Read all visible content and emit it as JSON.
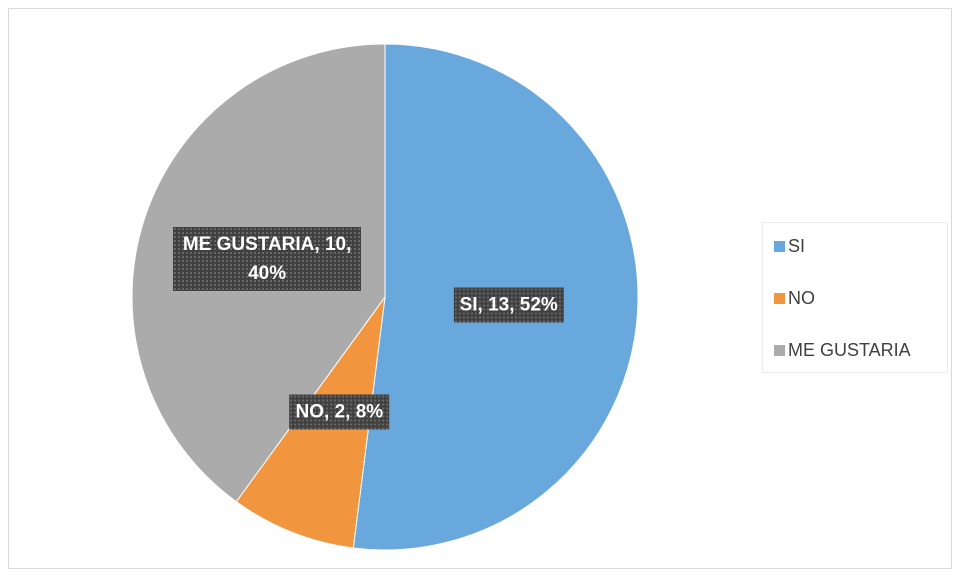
{
  "chart_data": {
    "type": "pie",
    "categories": [
      "SI",
      "NO",
      "ME GUSTARIA"
    ],
    "values": [
      13,
      2,
      10
    ],
    "value_labels": [
      "SI, 13, 52%",
      "NO, 2, 8%",
      "ME GUSTARIA, 10, 40%"
    ],
    "colors": [
      "#69a8dd",
      "#f2953f",
      "#ababab"
    ],
    "legend": "right"
  }
}
